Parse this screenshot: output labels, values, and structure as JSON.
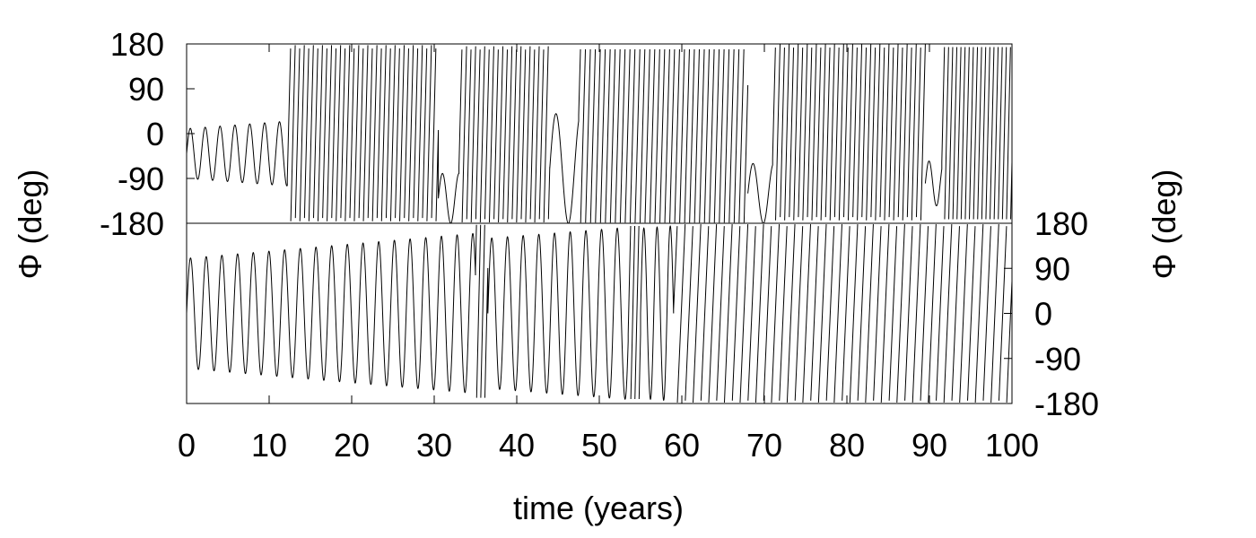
{
  "chart_data": [
    {
      "type": "line",
      "panel": "top",
      "ylabel": "Φ (deg)",
      "ylabel_side": "left",
      "xlim": [
        0,
        100
      ],
      "ylim": [
        -180,
        180
      ],
      "yticks": [
        "180",
        "90",
        "0",
        "-90",
        "-180"
      ],
      "wrapped": true,
      "series": [
        {
          "segments": [
            {
              "x_start": 0,
              "x_end": 12.2,
              "behavior": "libration",
              "period_years": 1.8,
              "center_deg": -40,
              "amplitude_start_deg": 50,
              "amplitude_end_deg": 65
            },
            {
              "x_start": 12.2,
              "x_end": 30.5,
              "behavior": "circulation",
              "period_years": 0.55
            },
            {
              "x_start": 30.5,
              "x_end": 33.0,
              "behavior": "libration",
              "period_years": 2.0,
              "center_deg": -130,
              "amplitude_start_deg": 50,
              "amplitude_end_deg": 50
            },
            {
              "x_start": 33.0,
              "x_end": 44.0,
              "behavior": "circulation",
              "period_years": 0.55
            },
            {
              "x_start": 44.0,
              "x_end": 47.5,
              "behavior": "libration",
              "period_years": 3.0,
              "center_deg": -70,
              "amplitude_start_deg": 110,
              "amplitude_end_deg": 110
            },
            {
              "x_start": 47.5,
              "x_end": 68.0,
              "behavior": "circulation",
              "period_years": 0.6
            },
            {
              "x_start": 68.0,
              "x_end": 71.0,
              "behavior": "libration",
              "period_years": 2.5,
              "center_deg": -120,
              "amplitude_start_deg": 60,
              "amplitude_end_deg": 60
            },
            {
              "x_start": 71.0,
              "x_end": 89.5,
              "behavior": "circulation",
              "period_years": 0.55
            },
            {
              "x_start": 89.5,
              "x_end": 91.5,
              "behavior": "libration",
              "period_years": 1.8,
              "center_deg": -100,
              "amplitude_start_deg": 45,
              "amplitude_end_deg": 45
            },
            {
              "x_start": 91.5,
              "x_end": 100,
              "behavior": "circulation",
              "period_years": 0.5
            }
          ]
        }
      ]
    },
    {
      "type": "line",
      "panel": "bottom",
      "ylabel": "Φ (deg)",
      "ylabel_side": "right",
      "xlabel": "time (years)",
      "xlim": [
        0,
        100
      ],
      "xticks": [
        "0",
        "10",
        "20",
        "30",
        "40",
        "50",
        "60",
        "70",
        "80",
        "90",
        "100"
      ],
      "ylim": [
        -180,
        180
      ],
      "yticks": [
        "180",
        "90",
        "0",
        "-90",
        "-180"
      ],
      "wrapped": true,
      "series": [
        {
          "segments": [
            {
              "x_start": 0,
              "x_end": 35.0,
              "behavior": "libration",
              "period_years": 1.9,
              "center_deg": 0,
              "amplitude_start_deg": 110,
              "amplitude_end_deg": 160
            },
            {
              "x_start": 35.0,
              "x_end": 36.5,
              "behavior": "circulation",
              "period_years": 0.5
            },
            {
              "x_start": 36.5,
              "x_end": 53.5,
              "behavior": "libration",
              "period_years": 1.9,
              "center_deg": 0,
              "amplitude_start_deg": 150,
              "amplitude_end_deg": 172
            },
            {
              "x_start": 53.5,
              "x_end": 55.0,
              "behavior": "circulation",
              "period_years": 0.5
            },
            {
              "x_start": 55.0,
              "x_end": 59.0,
              "behavior": "libration",
              "period_years": 1.6,
              "center_deg": 0,
              "amplitude_start_deg": 170,
              "amplitude_end_deg": 175
            },
            {
              "x_start": 59.0,
              "x_end": 100,
              "behavior": "circulation",
              "period_years": 0.95
            }
          ]
        }
      ]
    }
  ]
}
